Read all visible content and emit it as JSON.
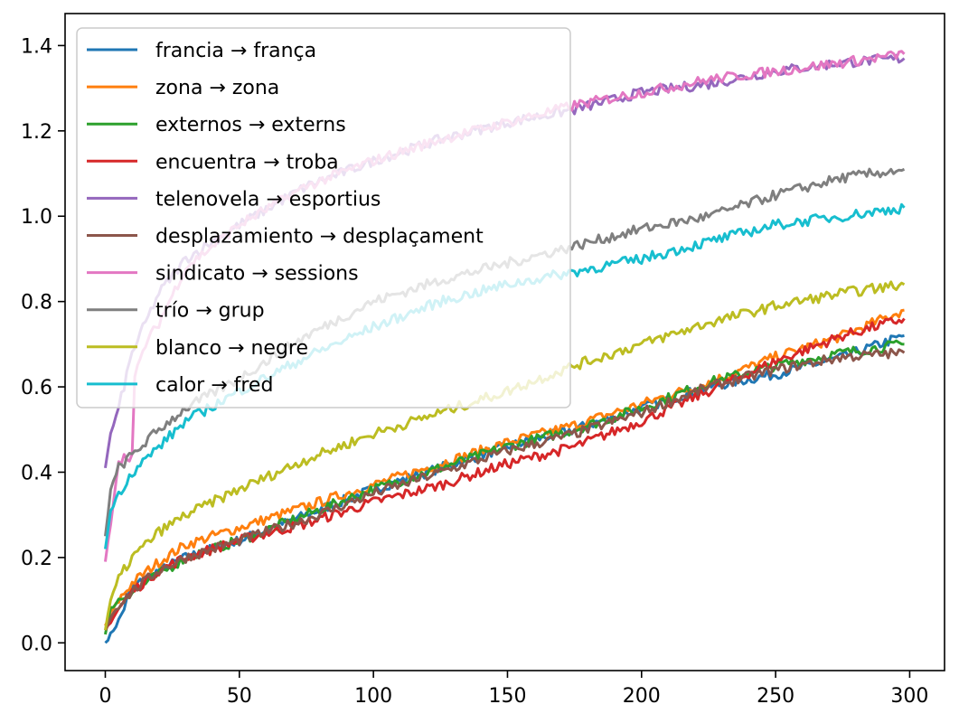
{
  "chart_data": {
    "type": "line",
    "title": "",
    "xlabel": "",
    "ylabel": "",
    "xlim": [
      -15,
      313
    ],
    "ylim": [
      -0.065,
      1.475
    ],
    "xticks": [
      0,
      50,
      100,
      150,
      200,
      250,
      300
    ],
    "yticks": [
      0.0,
      0.2,
      0.4,
      0.6,
      0.8,
      1.0,
      1.2,
      1.4
    ],
    "xtick_labels": [
      "0",
      "50",
      "100",
      "150",
      "200",
      "250",
      "300"
    ],
    "ytick_labels": [
      "0.0",
      "0.2",
      "0.4",
      "0.6",
      "0.8",
      "1.0",
      "1.2",
      "1.4"
    ],
    "grid": false,
    "legend_position": "upper-left",
    "x_range": [
      0,
      298
    ],
    "series": [
      {
        "name": "francia → frança",
        "color": "#1f77b4",
        "x": [
          0,
          2,
          5,
          10,
          20,
          30,
          50,
          75,
          100,
          125,
          150,
          175,
          200,
          225,
          250,
          275,
          298
        ],
        "values": [
          0.0,
          0.02,
          0.05,
          0.13,
          0.17,
          0.2,
          0.24,
          0.3,
          0.36,
          0.41,
          0.46,
          0.5,
          0.55,
          0.6,
          0.63,
          0.67,
          0.72
        ]
      },
      {
        "name": "zona → zona",
        "color": "#ff7f0e",
        "x": [
          0,
          2,
          5,
          10,
          20,
          30,
          50,
          75,
          100,
          125,
          150,
          175,
          200,
          225,
          250,
          275,
          298
        ],
        "values": [
          0.04,
          0.07,
          0.1,
          0.14,
          0.19,
          0.23,
          0.27,
          0.32,
          0.37,
          0.42,
          0.47,
          0.51,
          0.56,
          0.61,
          0.67,
          0.72,
          0.78
        ]
      },
      {
        "name": "externos → externs",
        "color": "#2ca02c",
        "x": [
          0,
          2,
          5,
          10,
          20,
          30,
          50,
          75,
          100,
          125,
          150,
          175,
          200,
          225,
          250,
          275,
          298
        ],
        "values": [
          0.02,
          0.08,
          0.1,
          0.12,
          0.16,
          0.2,
          0.24,
          0.3,
          0.36,
          0.41,
          0.46,
          0.5,
          0.55,
          0.61,
          0.65,
          0.68,
          0.7
        ]
      },
      {
        "name": "encuentra → troba",
        "color": "#d62728",
        "x": [
          0,
          2,
          5,
          10,
          20,
          30,
          50,
          75,
          100,
          125,
          150,
          175,
          200,
          225,
          250,
          275,
          298
        ],
        "values": [
          0.03,
          0.05,
          0.08,
          0.12,
          0.17,
          0.2,
          0.24,
          0.28,
          0.33,
          0.37,
          0.42,
          0.46,
          0.52,
          0.59,
          0.66,
          0.72,
          0.76
        ]
      },
      {
        "name": "telenovela → esportius",
        "color": "#9467bd",
        "x": [
          0,
          2,
          5,
          10,
          20,
          30,
          50,
          75,
          100,
          125,
          150,
          175,
          200,
          225,
          250,
          275,
          298
        ],
        "values": [
          0.41,
          0.49,
          0.55,
          0.68,
          0.82,
          0.9,
          0.98,
          1.07,
          1.13,
          1.18,
          1.22,
          1.25,
          1.29,
          1.31,
          1.34,
          1.36,
          1.37
        ]
      },
      {
        "name": "desplazamiento → desplaçament",
        "color": "#8c564b",
        "x": [
          0,
          2,
          5,
          10,
          20,
          30,
          50,
          75,
          100,
          125,
          150,
          175,
          200,
          225,
          250,
          275,
          298
        ],
        "values": [
          0.03,
          0.06,
          0.09,
          0.12,
          0.17,
          0.2,
          0.24,
          0.29,
          0.35,
          0.4,
          0.45,
          0.49,
          0.54,
          0.6,
          0.64,
          0.67,
          0.68
        ]
      },
      {
        "name": "sindicato → sessions",
        "color": "#e377c2",
        "x": [
          0,
          2,
          5,
          10,
          11,
          15,
          20,
          30,
          50,
          75,
          100,
          125,
          150,
          175,
          200,
          225,
          250,
          275,
          298
        ],
        "values": [
          0.19,
          0.28,
          0.43,
          0.44,
          0.62,
          0.7,
          0.75,
          0.88,
          0.98,
          1.07,
          1.13,
          1.18,
          1.22,
          1.26,
          1.29,
          1.32,
          1.34,
          1.36,
          1.38
        ]
      },
      {
        "name": "trío → grup",
        "color": "#7f7f7f",
        "x": [
          0,
          2,
          5,
          10,
          20,
          30,
          50,
          75,
          100,
          125,
          150,
          175,
          200,
          225,
          250,
          275,
          298
        ],
        "values": [
          0.25,
          0.36,
          0.41,
          0.44,
          0.5,
          0.55,
          0.62,
          0.72,
          0.8,
          0.85,
          0.89,
          0.93,
          0.97,
          1.0,
          1.05,
          1.09,
          1.11
        ]
      },
      {
        "name": "blanco → negre",
        "color": "#bcbd22",
        "x": [
          0,
          2,
          5,
          10,
          20,
          30,
          50,
          75,
          100,
          125,
          150,
          175,
          200,
          225,
          250,
          275,
          298
        ],
        "values": [
          0.03,
          0.1,
          0.15,
          0.2,
          0.26,
          0.3,
          0.36,
          0.43,
          0.49,
          0.54,
          0.59,
          0.65,
          0.7,
          0.75,
          0.79,
          0.82,
          0.84
        ]
      },
      {
        "name": "calor → fred",
        "color": "#17becf",
        "x": [
          0,
          2,
          5,
          10,
          20,
          30,
          50,
          75,
          100,
          125,
          150,
          175,
          200,
          225,
          250,
          275,
          298
        ],
        "values": [
          0.22,
          0.31,
          0.35,
          0.4,
          0.46,
          0.52,
          0.59,
          0.67,
          0.74,
          0.8,
          0.84,
          0.87,
          0.9,
          0.94,
          0.98,
          1.0,
          1.02
        ]
      }
    ]
  }
}
